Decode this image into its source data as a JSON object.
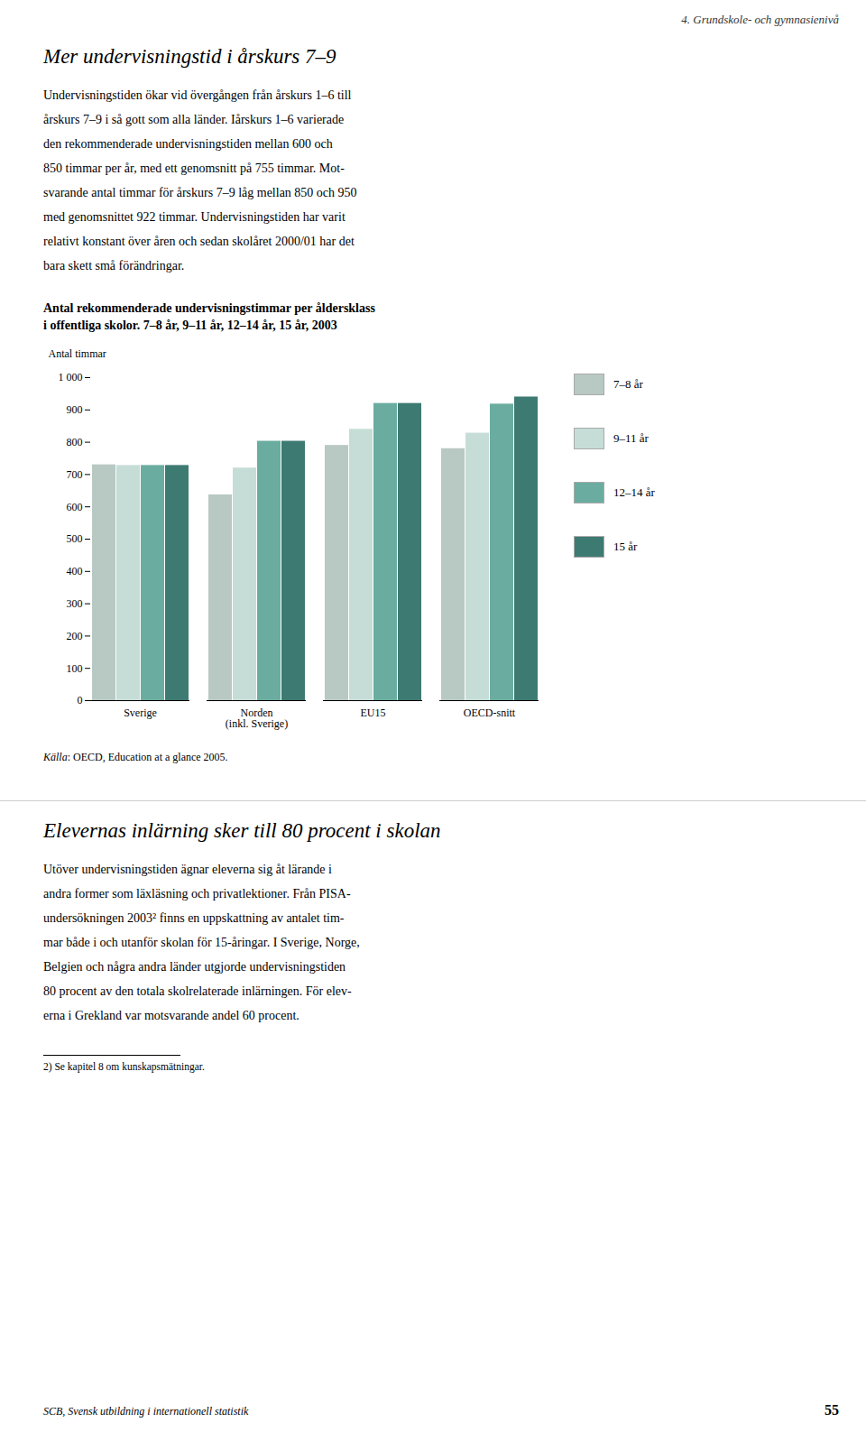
{
  "chapter_header": "4. Grundskole- och gymnasienivå",
  "heading": "Mer undervisningstid i årskurs 7–9",
  "paragraph1": [
    "Undervisningstiden ökar vid övergången från årskurs 1–6 till",
    "årskurs 7–9 i så gott som alla länder. Iårskurs 1–6 varierade",
    "den rekommenderade undervisningstiden mellan 600 och",
    "850 timmar per år, med ett genomsnitt på 755 timmar. Mot-",
    "svarande antal timmar för årskurs 7–9 låg mellan 850 och 950",
    "med genomsnittet 922 timmar. Undervisningstiden har varit",
    "relativt konstant över åren och sedan skolåret 2000/01 har det",
    "bara skett små förändringar."
  ],
  "chart_data": {
    "type": "bar",
    "title": "Antal rekommenderade undervisningstimmar per åldersklass\ni offentliga skolor. 7–8 år, 9–11 år, 12–14 år, 15 år, 2003",
    "ylabel": "Antal timmar",
    "categories": [
      "Sverige",
      "Norden\n(inkl. Sverige)",
      "EU15",
      "OECD-snitt"
    ],
    "series": [
      {
        "name": "7–8 år",
        "color": "#b8c8c2",
        "values": [
          730,
          637,
          790,
          780
        ]
      },
      {
        "name": "9–11 år",
        "color": "#c5ddd6",
        "values": [
          728,
          720,
          840,
          828
        ]
      },
      {
        "name": "12–14 år",
        "color": "#6aada0",
        "values": [
          728,
          803,
          920,
          918
        ]
      },
      {
        "name": "15 år",
        "color": "#3d7a72",
        "values": [
          728,
          803,
          920,
          940
        ]
      }
    ],
    "ylim": [
      0,
      1000
    ],
    "yticks": [
      0,
      100,
      200,
      300,
      400,
      500,
      600,
      700,
      800,
      900,
      {
        "value": 1000,
        "label": "1 000"
      }
    ],
    "grid": false,
    "legend": "right",
    "source": "Källa: OECD, Education at a glance 2005."
  },
  "heading2": "Elevernas inlärning sker till 80 procent i skolan",
  "paragraph2": [
    "Utöver undervisningstiden ägnar eleverna sig åt lärande i",
    "andra former som läxläsning och privatlektioner. Från PISA-",
    "undersökningen 2003² finns en uppskattning av antalet tim-",
    "mar både i och utanför skolan för 15-åringar. I Sverige, Norge,",
    "Belgien och några andra länder utgjorde undervisningstiden",
    "80 procent av den totala skolrelaterade inlärningen. För elev-",
    "erna i Grekland var motsvarande andel 60 procent."
  ],
  "footnote": "2) Se kapitel 8 om kunskapsmätningar.",
  "footer": "SCB, Svensk utbildning i internationell statistik",
  "page_number": "55"
}
